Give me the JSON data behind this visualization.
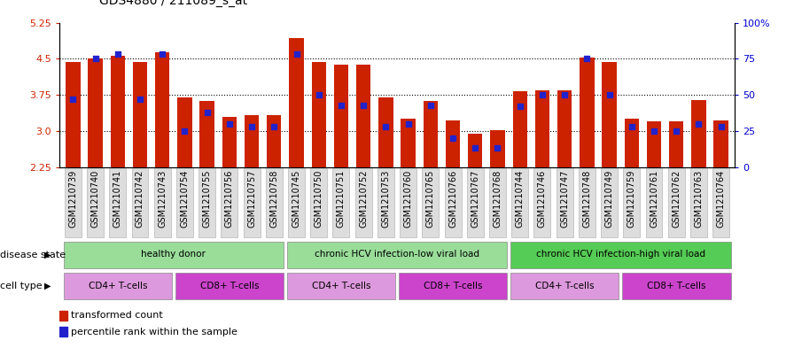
{
  "title": "GDS4880 / 211089_s_at",
  "samples": [
    "GSM1210739",
    "GSM1210740",
    "GSM1210741",
    "GSM1210742",
    "GSM1210743",
    "GSM1210754",
    "GSM1210755",
    "GSM1210756",
    "GSM1210757",
    "GSM1210758",
    "GSM1210745",
    "GSM1210750",
    "GSM1210751",
    "GSM1210752",
    "GSM1210753",
    "GSM1210760",
    "GSM1210765",
    "GSM1210766",
    "GSM1210767",
    "GSM1210768",
    "GSM1210744",
    "GSM1210746",
    "GSM1210747",
    "GSM1210748",
    "GSM1210749",
    "GSM1210759",
    "GSM1210761",
    "GSM1210762",
    "GSM1210763",
    "GSM1210764"
  ],
  "transformed_count": [
    4.43,
    4.5,
    4.57,
    4.43,
    4.63,
    3.7,
    3.62,
    3.3,
    3.33,
    3.33,
    4.93,
    4.43,
    4.38,
    4.38,
    3.7,
    3.25,
    3.63,
    3.22,
    2.95,
    3.02,
    3.82,
    3.85,
    3.85,
    4.53,
    4.43,
    3.25,
    3.2,
    3.2,
    3.65,
    3.22
  ],
  "percentile_rank": [
    47,
    75,
    78,
    47,
    78,
    25,
    38,
    30,
    28,
    28,
    78,
    50,
    43,
    43,
    28,
    30,
    43,
    20,
    13,
    13,
    42,
    50,
    50,
    75,
    50,
    28,
    25,
    25,
    30,
    28
  ],
  "ylim_left": [
    2.25,
    5.25
  ],
  "ylim_right": [
    0,
    100
  ],
  "yticks_left": [
    2.25,
    3.0,
    3.75,
    4.5,
    5.25
  ],
  "yticks_right": [
    0,
    25,
    50,
    75,
    100
  ],
  "ytick_labels_right": [
    "0",
    "25",
    "50",
    "75",
    "100%"
  ],
  "bar_color": "#CC2200",
  "dot_color": "#2222CC",
  "bar_bottom": 2.25,
  "disease_state_groups": [
    {
      "label": "healthy donor",
      "start": 0,
      "end": 9,
      "color": "#99DD99"
    },
    {
      "label": "chronic HCV infection-low viral load",
      "start": 10,
      "end": 19,
      "color": "#99DD99"
    },
    {
      "label": "chronic HCV infection-high viral load",
      "start": 20,
      "end": 29,
      "color": "#55CC55"
    }
  ],
  "cell_type_groups": [
    {
      "label": "CD4+ T-cells",
      "start": 0,
      "end": 4,
      "color": "#DD99DD"
    },
    {
      "label": "CD8+ T-cells",
      "start": 5,
      "end": 9,
      "color": "#CC44CC"
    },
    {
      "label": "CD4+ T-cells",
      "start": 10,
      "end": 14,
      "color": "#DD99DD"
    },
    {
      "label": "CD8+ T-cells",
      "start": 15,
      "end": 19,
      "color": "#CC44CC"
    },
    {
      "label": "CD4+ T-cells",
      "start": 20,
      "end": 24,
      "color": "#DD99DD"
    },
    {
      "label": "CD8+ T-cells",
      "start": 25,
      "end": 29,
      "color": "#CC44CC"
    }
  ],
  "disease_state_label": "disease state",
  "cell_type_label": "cell type",
  "legend_items": [
    {
      "label": "transformed count",
      "color": "#CC2200"
    },
    {
      "label": "percentile rank within the sample",
      "color": "#2222CC"
    }
  ],
  "xticklabel_bg": "#cccccc",
  "plot_bg": "#ffffff",
  "fig_bg": "#ffffff",
  "grid_color": "#000000",
  "grid_dot": "dotted",
  "title_fontsize": 10,
  "axis_fontsize": 8,
  "xlabel_fontsize": 7
}
